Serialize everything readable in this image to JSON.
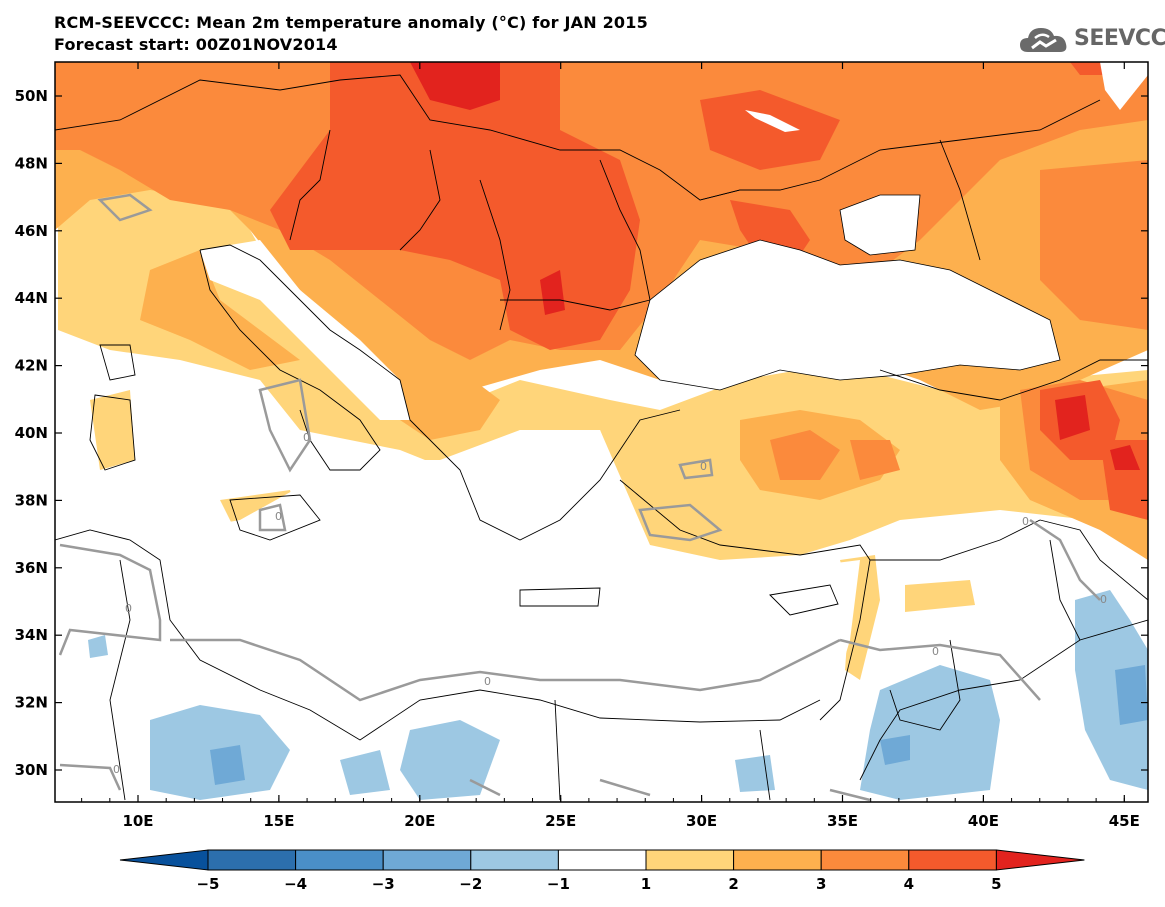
{
  "header": {
    "title": "RCM-SEEVCCC: Mean 2m temperature anomaly (°C) for JAN 2015",
    "subtitle": "Forecast start: 00Z01NOV2014",
    "logo_text": "SEEVCCC"
  },
  "axes": {
    "lat_labels": [
      "50N",
      "48N",
      "46N",
      "44N",
      "42N",
      "40N",
      "38N",
      "36N",
      "34N",
      "32N",
      "30N"
    ],
    "lon_labels": [
      "10E",
      "15E",
      "20E",
      "25E",
      "30E",
      "35E",
      "40E",
      "45E"
    ]
  },
  "colorbar": {
    "labels": [
      "−5",
      "−4",
      "−3",
      "−2",
      "−1",
      "1",
      "2",
      "3",
      "4",
      "5"
    ],
    "colors": [
      "#08519c",
      "#2c6fad",
      "#4a8fc8",
      "#6fa9d6",
      "#9dc8e3",
      "#ffffff",
      "#ffd57a",
      "#fdb04e",
      "#fb8a3c",
      "#f45a2c",
      "#e2231e"
    ]
  },
  "contour_labels": [
    "0",
    "0",
    "0",
    "0",
    "0",
    "0",
    "0",
    "0",
    "0"
  ]
}
